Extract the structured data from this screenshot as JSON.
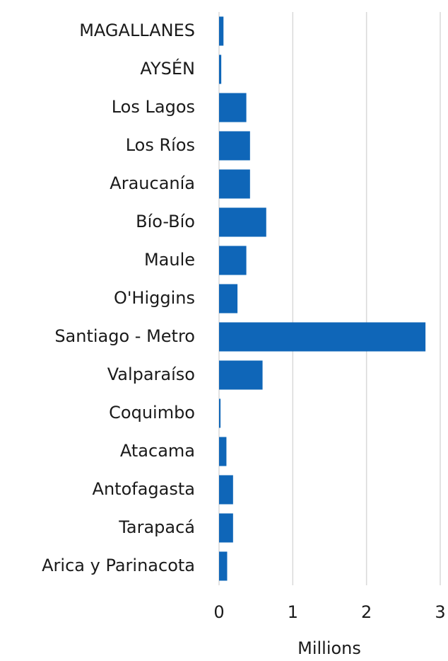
{
  "chart_data": {
    "type": "barh",
    "categories": [
      "MAGALLANES",
      "AYSÉN",
      "Los Lagos",
      "Los Ríos",
      "Araucanía",
      "Bío-Bío",
      "Maule",
      "O'Higgins",
      "Santiago - Metro",
      "Valparaíso",
      "Coquimbo",
      "Atacama",
      "Antofagasta",
      "Tarapacá",
      "Arica y Parinacota"
    ],
    "values": [
      0.06,
      0.03,
      0.37,
      0.42,
      0.42,
      0.64,
      0.37,
      0.25,
      2.8,
      0.59,
      0.02,
      0.1,
      0.19,
      0.19,
      0.11
    ],
    "color": "#0f66b8",
    "xlabel": "Millions",
    "xlim": [
      0,
      3
    ],
    "xticks": [
      0,
      1,
      2,
      3
    ],
    "grid": true
  }
}
